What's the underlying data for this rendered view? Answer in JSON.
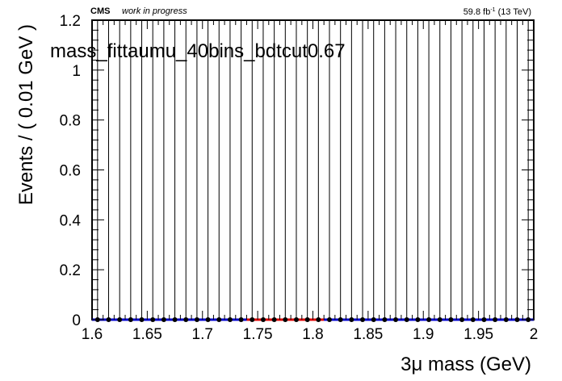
{
  "header": {
    "experiment": "CMS",
    "status": "work in progress",
    "lumi_value": "59.8 fb",
    "lumi_exponent": "-1",
    "lumi_energy": " (13 TeV)"
  },
  "chart_data": {
    "type": "scatter",
    "title": "mass_fittaumu_40bins_bdtcut0.67",
    "xlabel": "3μ mass (GeV)",
    "ylabel": "Events / ( 0.01 GeV )",
    "xlim": [
      1.6,
      2.0
    ],
    "ylim": [
      0,
      1.2
    ],
    "x_ticks": [
      "1.6",
      "1.65",
      "1.7",
      "1.75",
      "1.8",
      "1.85",
      "1.9",
      "1.95",
      "2"
    ],
    "y_ticks": [
      "0",
      "0.2",
      "0.4",
      "0.6",
      "0.8",
      "1",
      "1.2"
    ],
    "grid": false,
    "series": [
      {
        "color": "#000000",
        "error_bars": true,
        "x": [
          1.605,
          1.615,
          1.625,
          1.635,
          1.645,
          1.655,
          1.665,
          1.675,
          1.685,
          1.695,
          1.705,
          1.715,
          1.725,
          1.735,
          1.745,
          1.755,
          1.765,
          1.775,
          1.785,
          1.795,
          1.805,
          1.815,
          1.825,
          1.835,
          1.845,
          1.855,
          1.865,
          1.875,
          1.885,
          1.895,
          1.905,
          1.915,
          1.925,
          1.935,
          1.945,
          1.955,
          1.965,
          1.975,
          1.985,
          1.995
        ],
        "y": [
          0,
          0,
          0,
          0,
          0,
          0,
          0,
          0,
          0,
          0,
          0,
          0,
          0,
          0,
          0,
          0,
          0,
          0,
          0,
          0,
          0,
          0,
          0,
          0,
          0,
          0,
          0,
          0,
          0,
          0,
          0,
          0,
          0,
          0,
          0,
          0,
          0,
          0,
          0,
          0
        ]
      },
      {
        "color": "#0000cc",
        "x": [
          1.6,
          2.0
        ],
        "y": [
          0,
          0
        ]
      },
      {
        "color": "#dd0000",
        "x": [
          1.74,
          1.81
        ],
        "y": [
          0,
          0
        ]
      }
    ]
  }
}
